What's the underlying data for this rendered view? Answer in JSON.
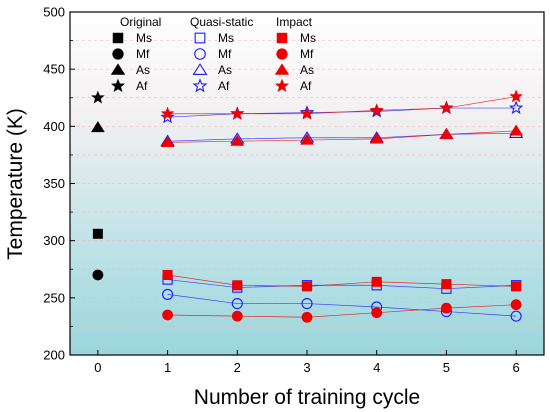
{
  "chart_data": {
    "type": "scatter",
    "xlabel": "Number of training cycle",
    "ylabel": "Temperature (K)",
    "xlim": [
      -0.4,
      6.4
    ],
    "ylim": [
      200,
      500
    ],
    "x_ticks": [
      0,
      1,
      2,
      3,
      4,
      5,
      6
    ],
    "y_ticks": [
      200,
      250,
      300,
      350,
      400,
      450,
      500
    ],
    "background": "gradient: teal (bottom) to white (top)",
    "legend_placement": "top-left",
    "legend_groups": [
      {
        "title": "Original",
        "entries": [
          "Ms",
          "Mf",
          "As",
          "Af"
        ]
      },
      {
        "title": "Quasi-static",
        "entries": [
          "Ms",
          "Mf",
          "As",
          "Af"
        ]
      },
      {
        "title": "Impact",
        "entries": [
          "Ms",
          "Mf",
          "As",
          "Af"
        ]
      }
    ],
    "series": [
      {
        "group": "Original",
        "name": "Ms",
        "marker": "square",
        "fill": "filled",
        "color": "#000000",
        "x": [
          0
        ],
        "y": [
          306
        ],
        "connected": false
      },
      {
        "group": "Original",
        "name": "Mf",
        "marker": "circle",
        "fill": "filled",
        "color": "#000000",
        "x": [
          0
        ],
        "y": [
          270
        ],
        "connected": false
      },
      {
        "group": "Original",
        "name": "As",
        "marker": "triangle",
        "fill": "filled",
        "color": "#000000",
        "x": [
          0
        ],
        "y": [
          399
        ],
        "connected": false
      },
      {
        "group": "Original",
        "name": "Af",
        "marker": "star",
        "fill": "filled",
        "color": "#000000",
        "x": [
          0
        ],
        "y": [
          425
        ],
        "connected": false
      },
      {
        "group": "Quasi-static",
        "name": "Ms",
        "marker": "square",
        "fill": "open",
        "color": "#1a1aff",
        "x": [
          1,
          2,
          3,
          4,
          5,
          6
        ],
        "y": [
          266,
          259,
          261,
          261,
          258,
          261
        ],
        "connected": true
      },
      {
        "group": "Quasi-static",
        "name": "Mf",
        "marker": "circle",
        "fill": "open",
        "color": "#1a1aff",
        "x": [
          1,
          2,
          3,
          4,
          5,
          6
        ],
        "y": [
          253,
          245,
          245,
          242,
          238,
          234
        ],
        "connected": true
      },
      {
        "group": "Quasi-static",
        "name": "As",
        "marker": "triangle",
        "fill": "open",
        "color": "#1a1aff",
        "x": [
          1,
          2,
          3,
          4,
          5,
          6
        ],
        "y": [
          387,
          389,
          390,
          390,
          393,
          394
        ],
        "connected": true
      },
      {
        "group": "Quasi-static",
        "name": "Af",
        "marker": "star",
        "fill": "open",
        "color": "#1a1aff",
        "x": [
          1,
          2,
          3,
          4,
          5,
          6
        ],
        "y": [
          408,
          411,
          412,
          413,
          416,
          416
        ],
        "connected": true
      },
      {
        "group": "Impact",
        "name": "Ms",
        "marker": "square",
        "fill": "filled",
        "color": "#ee0000",
        "x": [
          1,
          2,
          3,
          4,
          5,
          6
        ],
        "y": [
          270,
          261,
          260,
          264,
          262,
          260
        ],
        "connected": true
      },
      {
        "group": "Impact",
        "name": "Mf",
        "marker": "circle",
        "fill": "filled",
        "color": "#ee0000",
        "x": [
          1,
          2,
          3,
          4,
          5,
          6
        ],
        "y": [
          235,
          234,
          233,
          237,
          241,
          244
        ],
        "connected": true
      },
      {
        "group": "Impact",
        "name": "As",
        "marker": "triangle",
        "fill": "filled",
        "color": "#ee0000",
        "x": [
          1,
          2,
          3,
          4,
          5,
          6
        ],
        "y": [
          386,
          387,
          388,
          389,
          393,
          396
        ],
        "connected": true
      },
      {
        "group": "Impact",
        "name": "Af",
        "marker": "star",
        "fill": "filled",
        "color": "#ee0000",
        "x": [
          1,
          2,
          3,
          4,
          5,
          6
        ],
        "y": [
          411,
          411,
          411,
          414,
          416,
          426
        ],
        "connected": true
      }
    ]
  }
}
